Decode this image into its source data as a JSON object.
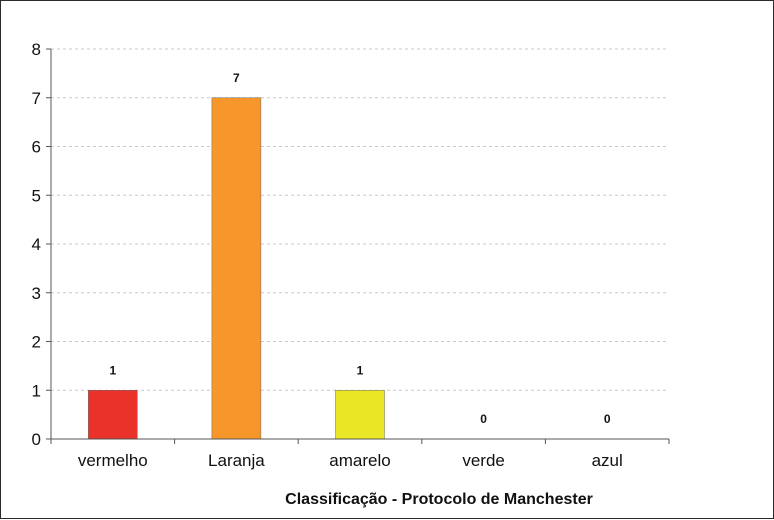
{
  "chart_data": {
    "type": "bar",
    "title": "",
    "xlabel": "Classificação - Protocolo de Manchester",
    "ylabel": "",
    "categories": [
      "vermelho",
      "Laranja",
      "amarelo",
      "verde",
      "azul"
    ],
    "values": [
      1,
      7,
      1,
      0,
      0
    ],
    "data_labels": [
      "1",
      "7",
      "1",
      "0",
      "0"
    ],
    "bar_colors": [
      "#e8322a",
      "#f7962b",
      "#e9e625",
      "#3aa845",
      "#3a6fc9"
    ],
    "ylim": [
      0,
      8
    ],
    "yticks": [
      0,
      1,
      2,
      3,
      4,
      5,
      6,
      7,
      8
    ],
    "grid": true,
    "legend": "none"
  }
}
